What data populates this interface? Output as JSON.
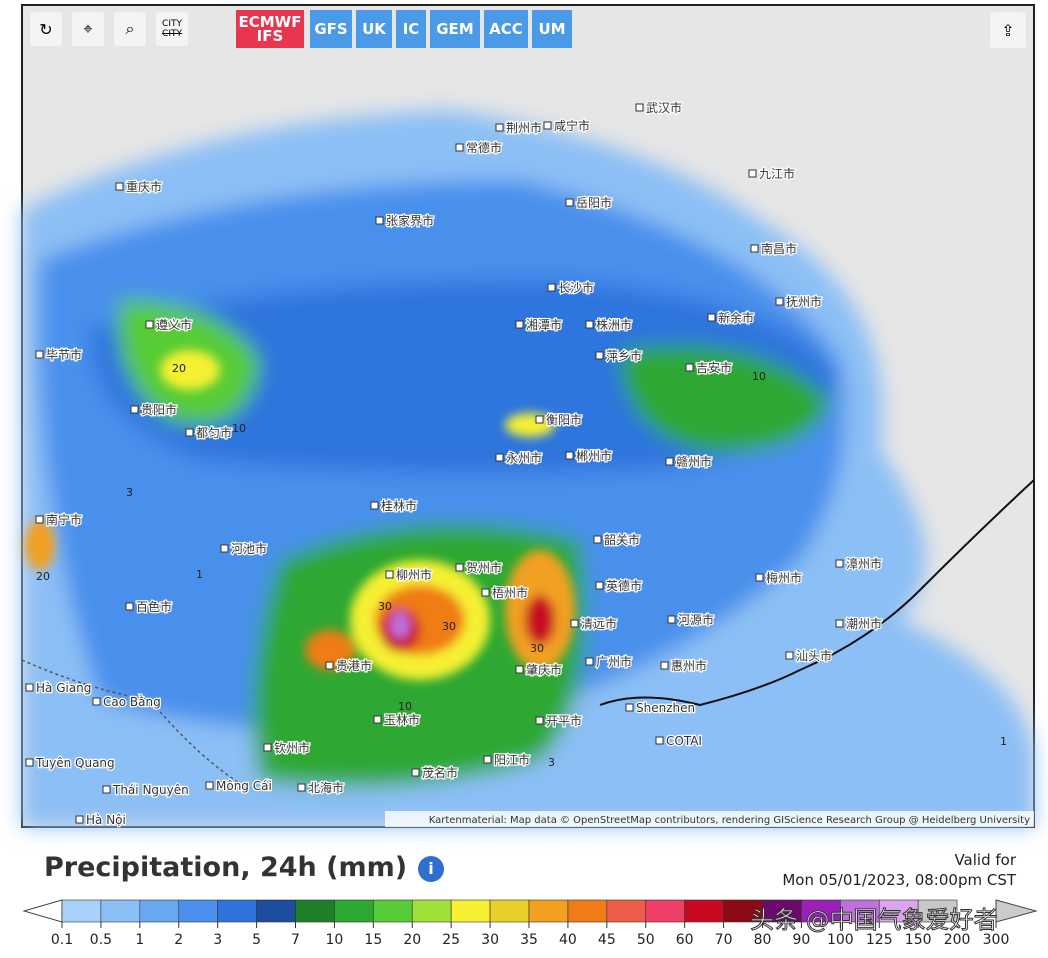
{
  "toolbar": {
    "city": "CITY",
    "city_strike": "CITY",
    "models": [
      "ECMWF IFS",
      "GFS",
      "UK",
      "IC",
      "GEM",
      "ACC",
      "UM"
    ]
  },
  "map": {
    "labels": [
      "重庆市",
      "遵义市",
      "贵阳市",
      "都匀市",
      "毕节市",
      "张家界市",
      "常德市",
      "长沙市",
      "株洲市",
      "湘潭市",
      "岳阳市",
      "南昌市",
      "抚州市",
      "新余市",
      "吉安市",
      "萍乡市",
      "衡阳市",
      "郴州市",
      "赣州市",
      "永州市",
      "桂林市",
      "柳州市",
      "梧州市",
      "贺州市",
      "韶关市",
      "英德市",
      "清远市",
      "广州市",
      "肇庆市",
      "惠州市",
      "河源市",
      "梅州市",
      "漳州市",
      "潮州市",
      "汕头市",
      "南宁市",
      "贵港市",
      "玉林市",
      "钦州市",
      "北海市",
      "茂名市",
      "阳江市",
      "开平市",
      "百色市",
      "河池市",
      "荆州市",
      "咸宁市",
      "武汉市",
      "九江市",
      "Shenzhen",
      "COTAI",
      "Cao Bằng",
      "Hà Giang",
      "Thái Nguyên",
      "Mông Cái",
      "Hà Nội",
      "Tuyên Quang"
    ],
    "contours": [
      "20",
      "10",
      "3",
      "1",
      "20",
      "30",
      "30",
      "30",
      "10",
      "3",
      "10",
      "1"
    ],
    "attribution": "Kartenmaterial: Map data © OpenStreetMap contributors, rendering GIScience Research Group @ Heidelberg University"
  },
  "legend": {
    "title": "Precipitation, 24h (mm)",
    "valid_label": "Valid for",
    "valid_time": "Mon 05/01/2023, 08:00pm CST",
    "ticks": [
      0.1,
      0.5,
      1,
      2,
      3,
      5,
      7,
      10,
      15,
      20,
      25,
      30,
      35,
      40,
      45,
      50,
      60,
      70,
      80,
      90,
      100,
      125,
      150,
      200,
      300
    ],
    "colors": [
      "#a8d0f8",
      "#8cbff5",
      "#6aa8f2",
      "#4a90ec",
      "#2f74dd",
      "#1c4d9e",
      "#1f7f28",
      "#2fa832",
      "#58cc36",
      "#9fe03a",
      "#f5f032",
      "#e8d02c",
      "#f2a020",
      "#f07c18",
      "#ee5c4a",
      "#ee3f66",
      "#c80820",
      "#8c0a16",
      "#6a0a6a",
      "#9a20b8",
      "#c070dc",
      "#dca4ee",
      "#c8c8c8"
    ],
    "watermark": "头条 @中国气象爱好者"
  }
}
